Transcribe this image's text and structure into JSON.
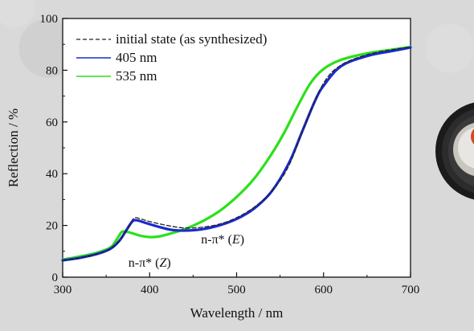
{
  "chart_data": {
    "type": "line",
    "xlabel": "Wavelength / nm",
    "ylabel": "Reflection / %",
    "xlim": [
      300,
      700
    ],
    "ylim": [
      0,
      100
    ],
    "xticks": [
      300,
      400,
      500,
      600,
      700
    ],
    "yticks": [
      0,
      20,
      40,
      60,
      80,
      100
    ],
    "legend_position": "top-left",
    "series": [
      {
        "name": "initial state (as synthesized)",
        "color": "#222222",
        "style": "dashed",
        "points": [
          [
            300,
            6.5
          ],
          [
            320,
            7.5
          ],
          [
            340,
            9
          ],
          [
            355,
            11
          ],
          [
            365,
            14
          ],
          [
            375,
            19
          ],
          [
            382,
            22.8
          ],
          [
            390,
            22.5
          ],
          [
            400,
            21.5
          ],
          [
            420,
            20
          ],
          [
            440,
            19
          ],
          [
            460,
            19.3
          ],
          [
            480,
            20.5
          ],
          [
            500,
            23
          ],
          [
            520,
            27
          ],
          [
            540,
            33
          ],
          [
            560,
            43
          ],
          [
            580,
            60
          ],
          [
            600,
            75
          ],
          [
            620,
            82
          ],
          [
            650,
            86
          ],
          [
            680,
            88
          ],
          [
            700,
            89
          ]
        ]
      },
      {
        "name": "405 nm",
        "color": "#1a2bcc",
        "style": "solid",
        "points": [
          [
            300,
            6.5
          ],
          [
            320,
            7.5
          ],
          [
            340,
            9
          ],
          [
            355,
            11
          ],
          [
            365,
            14
          ],
          [
            373,
            18
          ],
          [
            380,
            21.5
          ],
          [
            385,
            22
          ],
          [
            395,
            21
          ],
          [
            410,
            19.5
          ],
          [
            425,
            18.3
          ],
          [
            440,
            18
          ],
          [
            460,
            18.5
          ],
          [
            480,
            20
          ],
          [
            500,
            22.5
          ],
          [
            520,
            26.5
          ],
          [
            540,
            33
          ],
          [
            560,
            44
          ],
          [
            575,
            56
          ],
          [
            590,
            68
          ],
          [
            600,
            74
          ],
          [
            620,
            81.5
          ],
          [
            650,
            85.5
          ],
          [
            680,
            87.5
          ],
          [
            700,
            88.8
          ]
        ]
      },
      {
        "name": "535 nm",
        "color": "#2be01a",
        "style": "solid",
        "points": [
          [
            300,
            6.8
          ],
          [
            320,
            8
          ],
          [
            340,
            9.5
          ],
          [
            355,
            11.5
          ],
          [
            362,
            14.5
          ],
          [
            368,
            17.5
          ],
          [
            374,
            17.5
          ],
          [
            380,
            17
          ],
          [
            390,
            16
          ],
          [
            400,
            15.5
          ],
          [
            410,
            15.7
          ],
          [
            420,
            16.5
          ],
          [
            440,
            18.5
          ],
          [
            460,
            21.5
          ],
          [
            480,
            25.5
          ],
          [
            500,
            31
          ],
          [
            520,
            38
          ],
          [
            540,
            47.5
          ],
          [
            555,
            56
          ],
          [
            570,
            66
          ],
          [
            585,
            75
          ],
          [
            600,
            80.5
          ],
          [
            620,
            84
          ],
          [
            650,
            86.5
          ],
          [
            680,
            88
          ],
          [
            700,
            89
          ]
        ]
      }
    ],
    "annotations": [
      {
        "text_pre": "n-π* (",
        "text_italic": "Z",
        "text_post": ")",
        "x": 400,
        "y": 4
      },
      {
        "text_pre": "n-π* (",
        "text_italic": "E",
        "text_post": ")",
        "x": 484,
        "y": 13
      }
    ]
  },
  "photo": {
    "description_icon": "sample-vial-photo"
  }
}
